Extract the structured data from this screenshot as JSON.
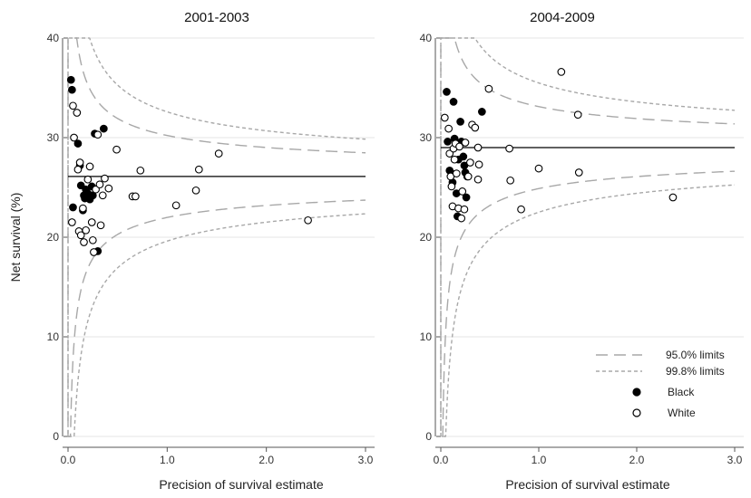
{
  "colors": {
    "black_group": "#000000",
    "white_group": "#ffffff",
    "limit_line": "#a8a8a8",
    "mean_line": "#000000",
    "grid": "#e6e6e6"
  },
  "figure": {
    "ylabel": "Net survival (%)",
    "legend": {
      "placement": "bottom-right of right panel",
      "items": [
        {
          "label": "95.0% limits",
          "style": "long-dash"
        },
        {
          "label": "99.8% limits",
          "style": "short-dash"
        },
        {
          "label": "Black",
          "style": "filled-circle"
        },
        {
          "label": "White",
          "style": "open-circle"
        }
      ]
    }
  },
  "chart_data": [
    {
      "type": "scatter",
      "title": "2001-2003",
      "xlabel": "Precision of survival estimate",
      "ylabel": "Net survival (%)",
      "xlim": [
        0,
        3.0
      ],
      "ylim": [
        0,
        40
      ],
      "xticks": [
        "0.0",
        "1.0",
        "2.0",
        "3.0"
      ],
      "yticks": [
        "0",
        "10",
        "20",
        "30",
        "40"
      ],
      "grid": "horizontal",
      "mean": 26.1,
      "limits": [
        {
          "name": "95.0% limits",
          "z": 1.96
        },
        {
          "name": "99.8% limits",
          "z": 3.09
        }
      ],
      "series": [
        {
          "name": "Black",
          "marker": "filled",
          "points": [
            [
              0.03,
              35.8
            ],
            [
              0.04,
              34.8
            ],
            [
              0.05,
              23.0
            ],
            [
              0.1,
              29.4
            ],
            [
              0.12,
              27.2
            ],
            [
              0.13,
              25.2
            ],
            [
              0.15,
              22.7
            ],
            [
              0.16,
              24.2
            ],
            [
              0.18,
              24.8
            ],
            [
              0.2,
              24.4
            ],
            [
              0.22,
              23.8
            ],
            [
              0.24,
              25.1
            ],
            [
              0.25,
              24.2
            ],
            [
              0.27,
              30.4
            ],
            [
              0.3,
              18.6
            ],
            [
              0.36,
              30.9
            ],
            [
              0.17,
              23.9
            ],
            [
              0.21,
              24.1
            ]
          ]
        },
        {
          "name": "White",
          "marker": "open",
          "points": [
            [
              0.04,
              21.5
            ],
            [
              0.05,
              33.2
            ],
            [
              0.06,
              30.0
            ],
            [
              0.09,
              32.5
            ],
            [
              0.1,
              26.8
            ],
            [
              0.11,
              20.6
            ],
            [
              0.12,
              27.5
            ],
            [
              0.13,
              20.2
            ],
            [
              0.15,
              22.9
            ],
            [
              0.16,
              19.5
            ],
            [
              0.18,
              20.7
            ],
            [
              0.2,
              25.8
            ],
            [
              0.22,
              27.1
            ],
            [
              0.24,
              21.5
            ],
            [
              0.25,
              19.7
            ],
            [
              0.26,
              18.5
            ],
            [
              0.28,
              24.8
            ],
            [
              0.3,
              30.3
            ],
            [
              0.32,
              25.3
            ],
            [
              0.33,
              21.2
            ],
            [
              0.35,
              24.2
            ],
            [
              0.37,
              25.9
            ],
            [
              0.41,
              24.9
            ],
            [
              0.49,
              28.8
            ],
            [
              0.65,
              24.1
            ],
            [
              0.68,
              24.1
            ],
            [
              0.73,
              26.7
            ],
            [
              1.09,
              23.2
            ],
            [
              1.29,
              24.7
            ],
            [
              1.32,
              26.8
            ],
            [
              1.52,
              28.4
            ],
            [
              2.42,
              21.7
            ]
          ]
        }
      ]
    },
    {
      "type": "scatter",
      "title": "2004-2009",
      "xlabel": "Precision of survival estimate",
      "ylabel": "",
      "xlim": [
        0,
        3.0
      ],
      "ylim": [
        0,
        40
      ],
      "xticks": [
        "0.0",
        "1.0",
        "2.0",
        "3.0"
      ],
      "yticks": [
        "0",
        "10",
        "20",
        "30",
        "40"
      ],
      "grid": "horizontal",
      "mean": 29.0,
      "limits": [
        {
          "name": "95.0% limits",
          "z": 1.96
        },
        {
          "name": "99.8% limits",
          "z": 3.09
        }
      ],
      "series": [
        {
          "name": "Black",
          "marker": "filled",
          "points": [
            [
              0.06,
              34.6
            ],
            [
              0.07,
              29.6
            ],
            [
              0.09,
              26.7
            ],
            [
              0.11,
              26.4
            ],
            [
              0.12,
              25.5
            ],
            [
              0.13,
              33.6
            ],
            [
              0.14,
              29.9
            ],
            [
              0.16,
              24.4
            ],
            [
              0.17,
              22.1
            ],
            [
              0.18,
              27.8
            ],
            [
              0.2,
              31.6
            ],
            [
              0.21,
              29.6
            ],
            [
              0.23,
              28.1
            ],
            [
              0.24,
              27.2
            ],
            [
              0.25,
              26.5
            ],
            [
              0.27,
              26.1
            ],
            [
              0.42,
              32.6
            ],
            [
              0.26,
              24.0
            ]
          ]
        },
        {
          "name": "White",
          "marker": "open",
          "points": [
            [
              0.04,
              32.0
            ],
            [
              0.08,
              30.9
            ],
            [
              0.09,
              28.4
            ],
            [
              0.1,
              26.1
            ],
            [
              0.11,
              25.1
            ],
            [
              0.12,
              23.1
            ],
            [
              0.13,
              28.9
            ],
            [
              0.14,
              27.8
            ],
            [
              0.15,
              29.4
            ],
            [
              0.16,
              26.4
            ],
            [
              0.18,
              22.9
            ],
            [
              0.19,
              29.1
            ],
            [
              0.21,
              21.9
            ],
            [
              0.22,
              24.6
            ],
            [
              0.24,
              22.8
            ],
            [
              0.25,
              29.5
            ],
            [
              0.28,
              26.1
            ],
            [
              0.3,
              27.5
            ],
            [
              0.32,
              31.3
            ],
            [
              0.35,
              31.0
            ],
            [
              0.38,
              29.0
            ],
            [
              0.39,
              27.3
            ],
            [
              0.38,
              25.8
            ],
            [
              0.49,
              34.9
            ],
            [
              0.7,
              28.9
            ],
            [
              0.71,
              25.7
            ],
            [
              0.82,
              22.8
            ],
            [
              1.0,
              26.9
            ],
            [
              1.23,
              36.6
            ],
            [
              1.4,
              32.3
            ],
            [
              1.41,
              26.5
            ],
            [
              2.37,
              24.0
            ]
          ]
        }
      ]
    }
  ]
}
